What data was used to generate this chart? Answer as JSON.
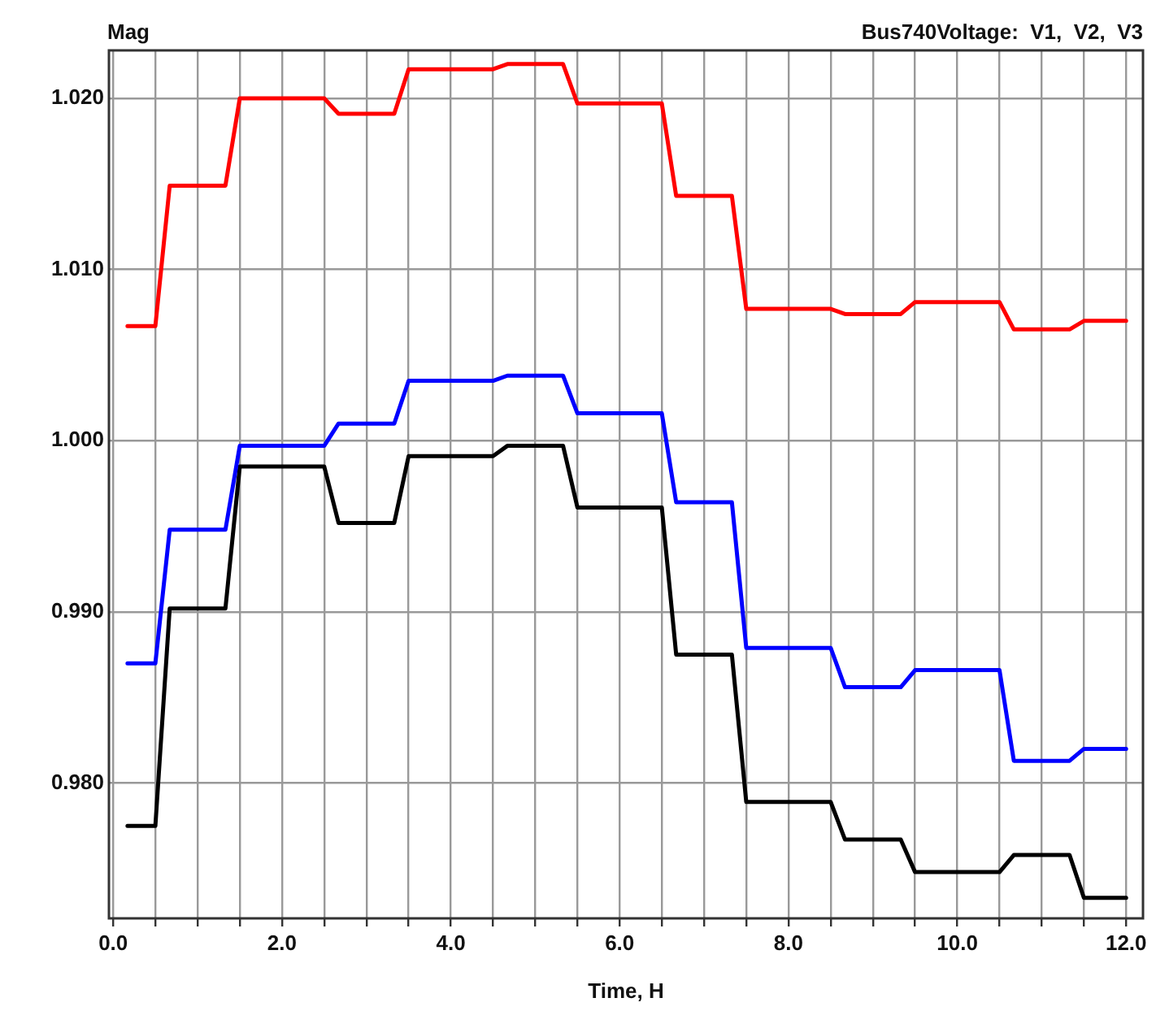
{
  "chart_data": {
    "type": "line",
    "title": "Bus740Voltage:  V1,  V2,  V3",
    "ylabel": "Mag",
    "xlabel": "Time, H",
    "x": [
      0.17,
      0.5,
      0.67,
      1.33,
      1.5,
      2.5,
      2.67,
      3.33,
      3.5,
      4.5,
      4.67,
      5.33,
      5.5,
      6.5,
      6.67,
      7.33,
      7.5,
      8.5,
      8.67,
      9.33,
      9.5,
      10.5,
      10.67,
      11.33,
      11.5,
      12.0
    ],
    "series": [
      {
        "color": "#ff0000",
        "values": [
          1.0067,
          1.0067,
          1.0149,
          1.0149,
          1.02,
          1.02,
          1.0191,
          1.0191,
          1.0217,
          1.0217,
          1.022,
          1.022,
          1.0197,
          1.0197,
          1.0143,
          1.0143,
          1.0077,
          1.0077,
          1.0074,
          1.0074,
          1.0081,
          1.0081,
          1.0065,
          1.0065,
          1.007,
          1.007
        ]
      },
      {
        "color": "#0000ff",
        "values": [
          0.987,
          0.987,
          0.9948,
          0.9948,
          0.9997,
          0.9997,
          1.001,
          1.001,
          1.0035,
          1.0035,
          1.0038,
          1.0038,
          1.0016,
          1.0016,
          0.9964,
          0.9964,
          0.9879,
          0.9879,
          0.9856,
          0.9856,
          0.9866,
          0.9866,
          0.9813,
          0.9813,
          0.982,
          0.982
        ]
      },
      {
        "color": "#000000",
        "values": [
          0.9775,
          0.9775,
          0.9902,
          0.9902,
          0.9985,
          0.9985,
          0.9952,
          0.9952,
          0.9991,
          0.9991,
          0.9997,
          0.9997,
          0.9961,
          0.9961,
          0.9875,
          0.9875,
          0.9789,
          0.9789,
          0.9767,
          0.9767,
          0.9748,
          0.9748,
          0.9758,
          0.9758,
          0.9733,
          0.9733
        ]
      }
    ],
    "xlim": [
      -0.05,
      12.2
    ],
    "xticks": [
      {
        "value": 0,
        "label": "0.0"
      },
      {
        "value": 0.5,
        "label": null
      },
      {
        "value": 1,
        "label": null
      },
      {
        "value": 1.5,
        "label": null
      },
      {
        "value": 2,
        "label": "2.0"
      },
      {
        "value": 2.5,
        "label": null
      },
      {
        "value": 3,
        "label": null
      },
      {
        "value": 3.5,
        "label": null
      },
      {
        "value": 4,
        "label": "4.0"
      },
      {
        "value": 4.5,
        "label": null
      },
      {
        "value": 5,
        "label": null
      },
      {
        "value": 5.5,
        "label": null
      },
      {
        "value": 6,
        "label": "6.0"
      },
      {
        "value": 6.5,
        "label": null
      },
      {
        "value": 7,
        "label": null
      },
      {
        "value": 7.5,
        "label": null
      },
      {
        "value": 8,
        "label": "8.0"
      },
      {
        "value": 8.5,
        "label": null
      },
      {
        "value": 9,
        "label": null
      },
      {
        "value": 9.5,
        "label": null
      },
      {
        "value": 10,
        "label": "10.0"
      },
      {
        "value": 10.5,
        "label": null
      },
      {
        "value": 11,
        "label": null
      },
      {
        "value": 11.5,
        "label": null
      },
      {
        "value": 12,
        "label": "12.0"
      }
    ],
    "ylim": [
      0.9721,
      1.0228
    ],
    "yticks": [
      {
        "value": 0.98,
        "label": "0.980"
      },
      {
        "value": 0.99,
        "label": "0.990"
      },
      {
        "value": 1.0,
        "label": "1.000"
      },
      {
        "value": 1.01,
        "label": "1.010"
      },
      {
        "value": 1.02,
        "label": "1.020"
      }
    ],
    "grid": true,
    "legend": false,
    "marker": "none",
    "line_style": "solid"
  }
}
